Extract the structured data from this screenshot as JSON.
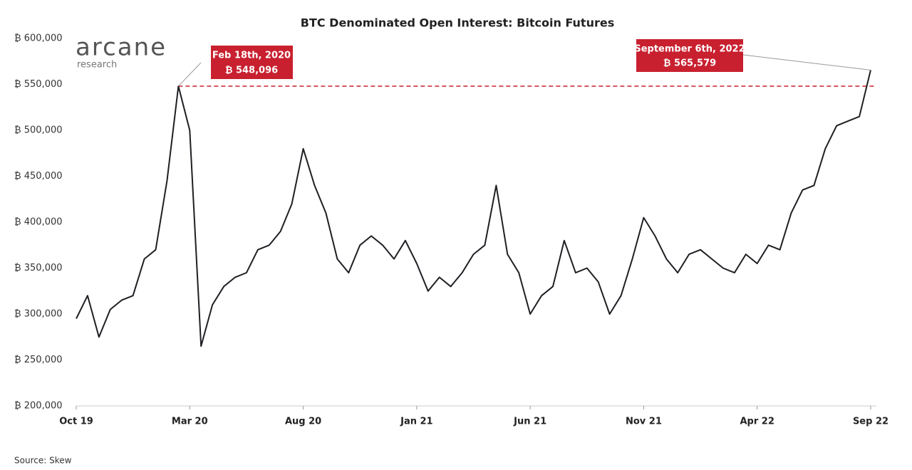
{
  "chart_data": {
    "type": "line",
    "title": "BTC Denominated Open Interest: Bitcoin Futures",
    "logo": [
      "arcane",
      "research"
    ],
    "source": "Source: Skew",
    "color": "#1f1f24",
    "categories": [
      "Oct 19",
      null,
      null,
      null,
      null,
      null,
      null,
      null,
      null,
      null,
      "Mar 20",
      null,
      null,
      null,
      null,
      null,
      null,
      null,
      null,
      null,
      "Aug 20",
      null,
      null,
      null,
      null,
      null,
      null,
      null,
      null,
      null,
      "Jan 21",
      null,
      null,
      null,
      null,
      null,
      null,
      null,
      null,
      null,
      "Jun 21",
      null,
      null,
      null,
      null,
      null,
      null,
      null,
      null,
      null,
      "Nov 21",
      null,
      null,
      null,
      null,
      null,
      null,
      null,
      null,
      null,
      "Apr 22",
      null,
      null,
      null,
      null,
      null,
      null,
      null,
      null,
      null,
      "Sep 22"
    ],
    "values": [
      295000,
      320000,
      275000,
      305000,
      315000,
      320000,
      360000,
      370000,
      445000,
      548096,
      500000,
      265000,
      310000,
      330000,
      340000,
      345000,
      370000,
      375000,
      390000,
      420000,
      480000,
      440000,
      410000,
      360000,
      345000,
      375000,
      385000,
      375000,
      360000,
      380000,
      355000,
      325000,
      340000,
      330000,
      345000,
      365000,
      375000,
      440000,
      365000,
      345000,
      300000,
      320000,
      330000,
      380000,
      345000,
      350000,
      335000,
      300000,
      320000,
      360000,
      405000,
      385000,
      360000,
      345000,
      365000,
      370000,
      360000,
      350000,
      345000,
      365000,
      355000,
      375000,
      370000,
      410000,
      435000,
      440000,
      480000,
      505000,
      510000,
      515000,
      565579
    ],
    "ylim": [
      200000,
      600000
    ],
    "yticks": [
      {
        "value": 200000,
        "label": "₿ 200,000"
      },
      {
        "value": 250000,
        "label": "₿ 250,000"
      },
      {
        "value": 300000,
        "label": "₿ 300,000"
      },
      {
        "value": 350000,
        "label": "₿ 350,000"
      },
      {
        "value": 400000,
        "label": "₿ 400,000"
      },
      {
        "value": 450000,
        "label": "₿ 450,000"
      },
      {
        "value": 500000,
        "label": "₿ 500,000"
      },
      {
        "value": 550000,
        "label": "₿ 550,000"
      },
      {
        "value": 600000,
        "label": "₿ 600,000"
      }
    ],
    "annotations": [
      {
        "date": "Feb 18th, 2020",
        "value": 548096,
        "value_label": "₿ 548,096"
      },
      {
        "date": "September 6th, 2022",
        "value": 565579,
        "value_label": "₿ 565,579"
      }
    ]
  }
}
